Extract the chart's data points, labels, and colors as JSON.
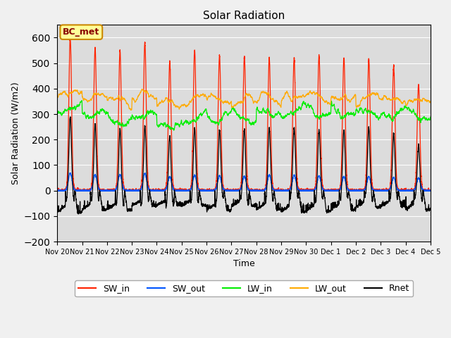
{
  "title": "Solar Radiation",
  "xlabel": "Time",
  "ylabel": "Solar Radiation (W/m2)",
  "ylim": [
    -200,
    650
  ],
  "yticks": [
    -200,
    -100,
    0,
    100,
    200,
    300,
    400,
    500,
    600
  ],
  "bg_color": "#dcdcdc",
  "annotation_text": "BC_met",
  "annotation_bg": "#ffff99",
  "annotation_border": "#cc8800",
  "colors": {
    "SW_in": "#ff2200",
    "SW_out": "#0055ff",
    "LW_in": "#00ee00",
    "LW_out": "#ffaa00",
    "Rnet": "#000000"
  },
  "x_tick_labels": [
    "Nov 20",
    "Nov 21",
    "Nov 22",
    "Nov 23",
    "Nov 24",
    "Nov 25",
    "Nov 26",
    "Nov 27",
    "Nov 28",
    "Nov 29",
    "Nov 30",
    "Dec 1",
    "Dec 2",
    "Dec 3",
    "Dec 4",
    "Dec 5"
  ],
  "SW_in_peaks": [
    600,
    560,
    548,
    580,
    505,
    550,
    530,
    525,
    520,
    520,
    530,
    520,
    515,
    490,
    415
  ],
  "SW_out_peaks": [
    68,
    62,
    63,
    67,
    55,
    60,
    58,
    56,
    62,
    60,
    58,
    55,
    55,
    52,
    50
  ]
}
